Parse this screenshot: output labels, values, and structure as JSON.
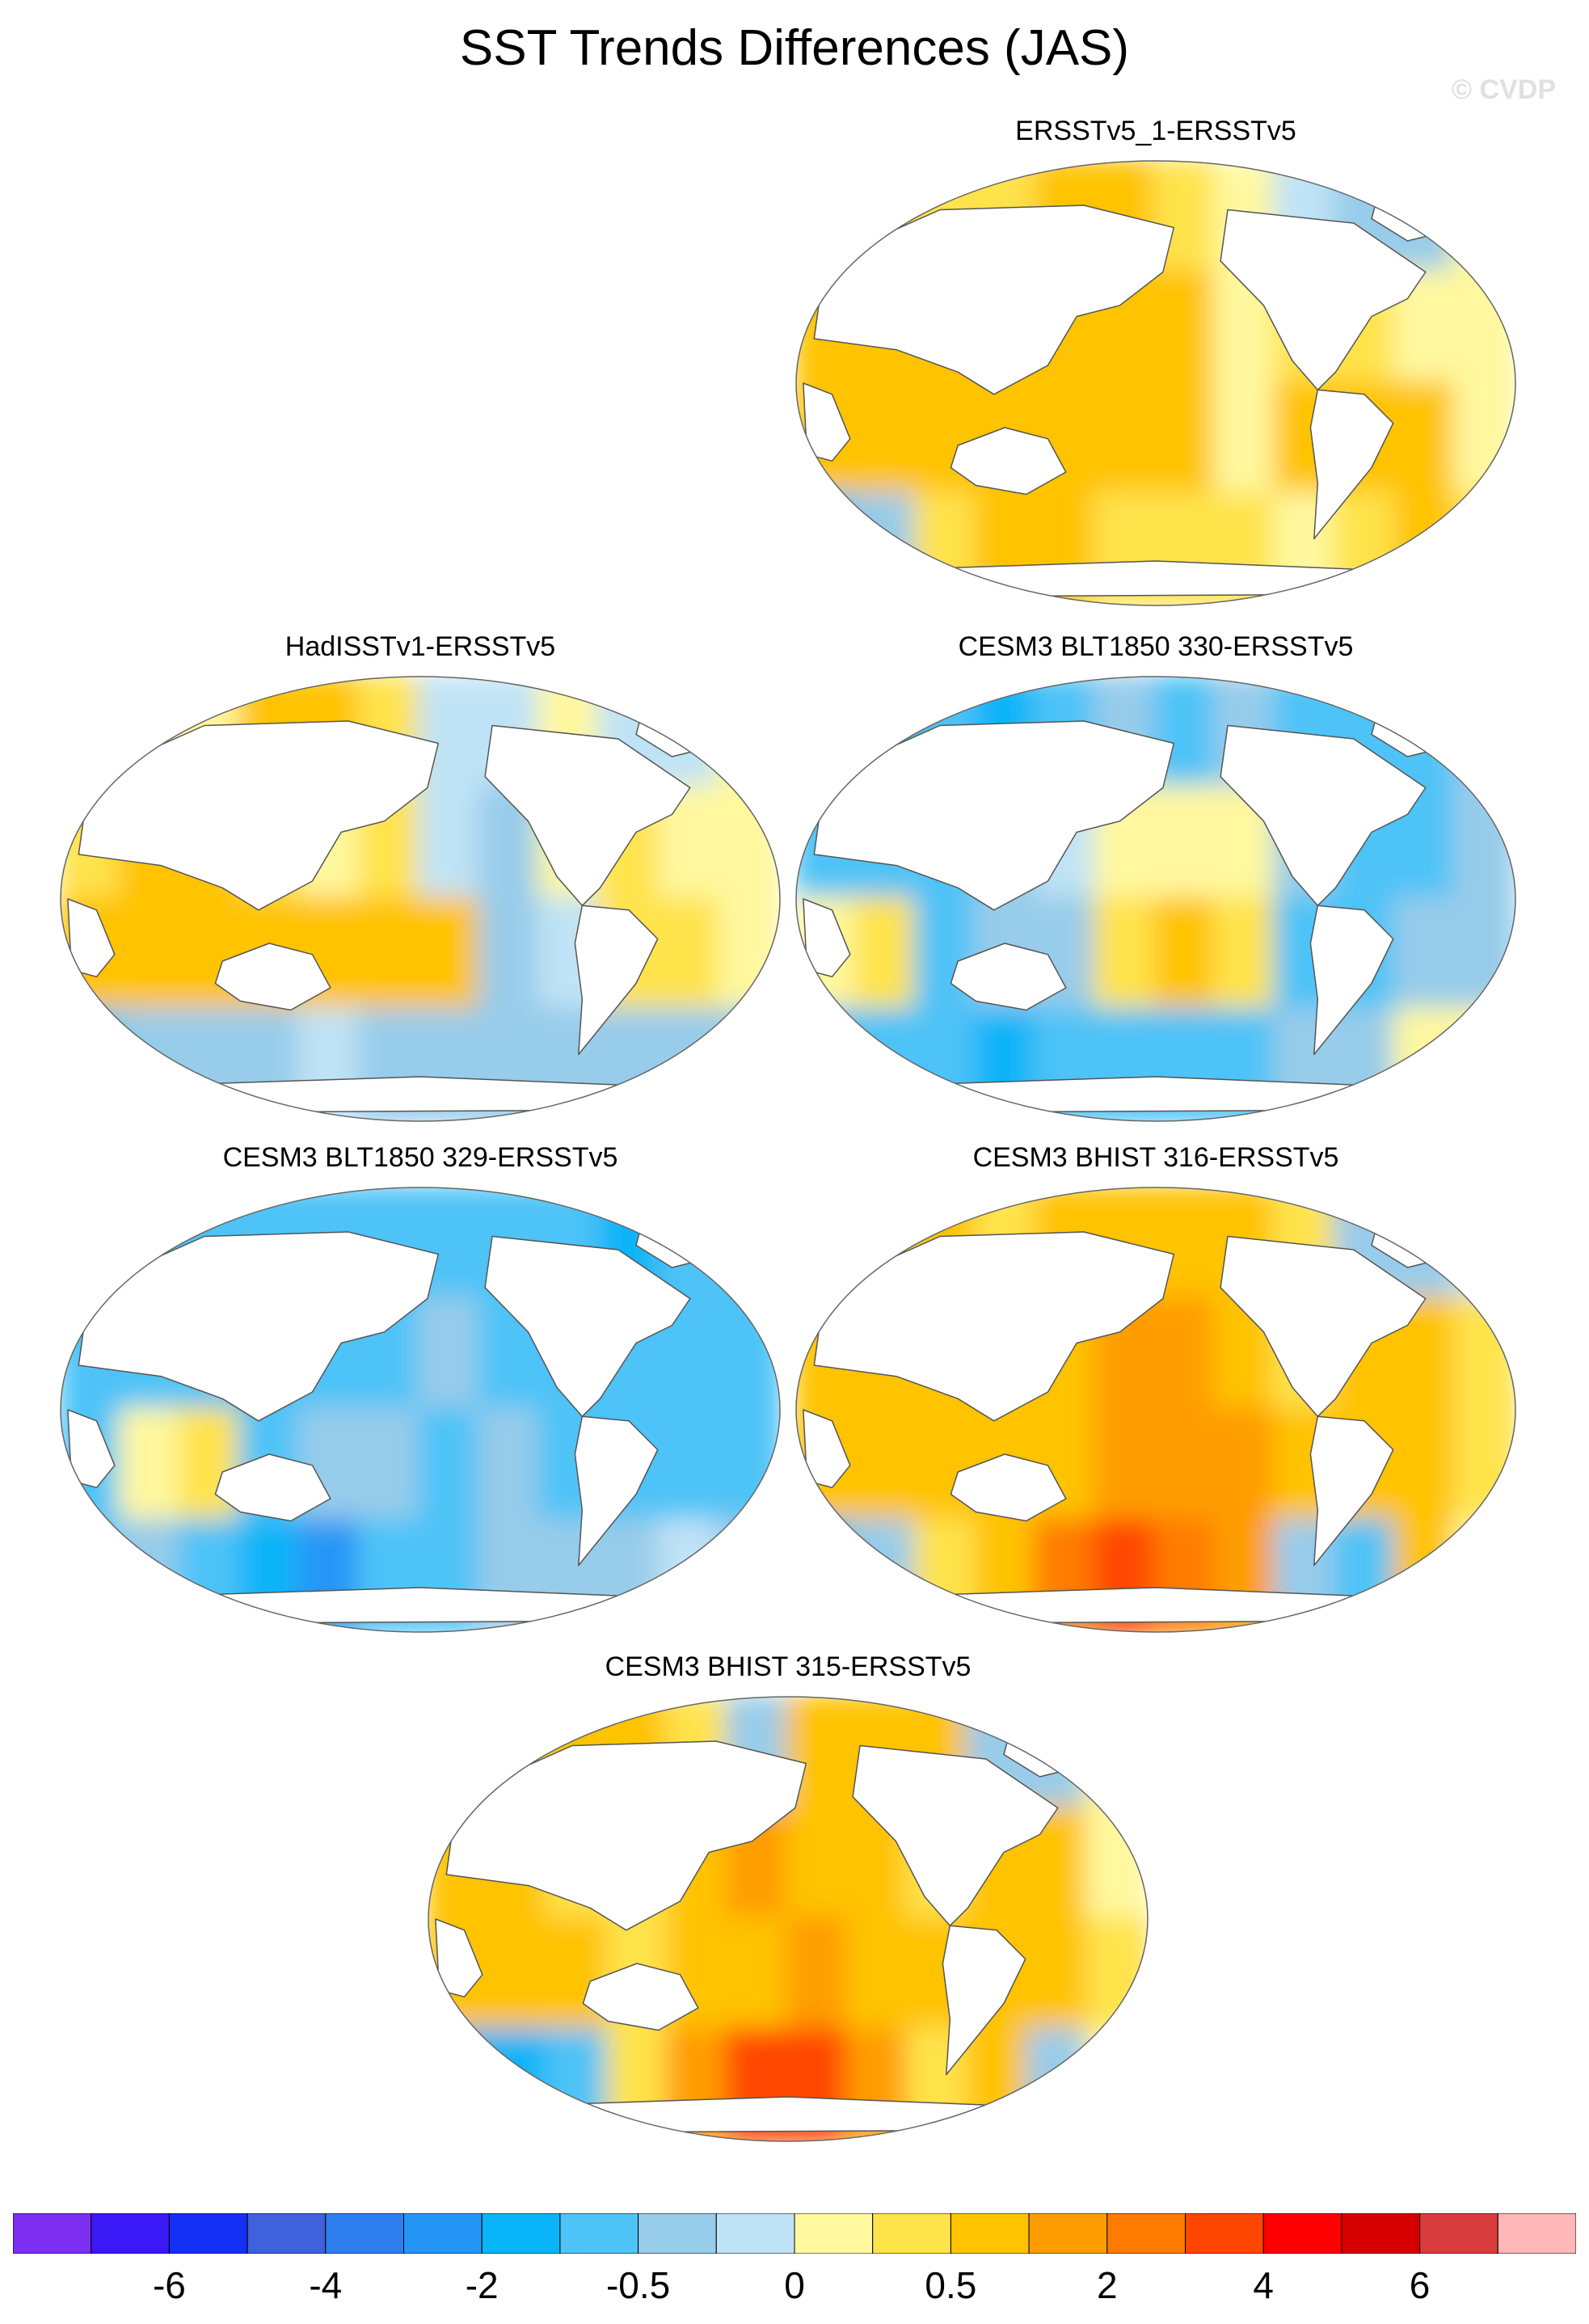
{
  "title": "SST Trends Differences (JAS)",
  "watermark": "© CVDP",
  "panels": [
    {
      "title": "ERSSTv5_1-ERSSTv5",
      "fields": [
        [
          0.3,
          0.3,
          0.4,
          0.4,
          0.5,
          0.7,
          0.4,
          0.1,
          -0.1,
          -0.4,
          -0.3,
          0.1
        ],
        [
          0.5,
          0.7,
          0.8,
          0.5,
          0.7,
          0.8,
          0.5,
          0.1,
          0.3,
          0.3,
          0.2,
          0.0
        ],
        [
          0.6,
          0.9,
          0.9,
          0.6,
          0.5,
          0.7,
          0.6,
          0.2,
          0.6,
          0.5,
          0.5,
          0.1
        ],
        [
          -0.6,
          -0.4,
          0.3,
          0.5,
          0.5,
          0.3,
          0.4,
          0.3,
          0.2,
          0.3,
          0.5,
          0.4
        ]
      ]
    },
    {
      "title": "HadISSTv1-ERSSTv5",
      "fields": [
        [
          0.3,
          0.1,
          0.2,
          0.5,
          0.6,
          0.4,
          -0.2,
          -0.1,
          0.2,
          -0.2,
          -0.1,
          0.1
        ],
        [
          0.4,
          0.6,
          0.5,
          0.3,
          0.1,
          0.3,
          -0.1,
          -0.4,
          0.1,
          0.3,
          0.1,
          0.0
        ],
        [
          0.5,
          0.7,
          0.7,
          0.5,
          0.6,
          0.5,
          0.7,
          -0.4,
          -0.2,
          0.4,
          0.3,
          0.2
        ],
        [
          -0.6,
          -0.5,
          -0.4,
          -0.3,
          -0.2,
          -0.3,
          -0.4,
          -0.5,
          -0.4,
          -0.5,
          -0.4,
          -0.4
        ]
      ]
    },
    {
      "title": "CESM3 BLT1850 330-ERSSTv5",
      "fields": [
        [
          -0.4,
          -0.6,
          -1.0,
          -1.4,
          -0.8,
          -0.5,
          -0.6,
          -0.4,
          -0.9,
          -1.0,
          -0.8,
          -0.4
        ],
        [
          -0.6,
          -0.8,
          -0.7,
          -0.4,
          -0.2,
          0.1,
          0.2,
          0.0,
          -0.5,
          -0.6,
          -0.7,
          -0.4
        ],
        [
          0.1,
          0.4,
          -0.8,
          -0.5,
          -0.3,
          0.3,
          0.5,
          0.4,
          -0.6,
          -0.7,
          -0.4,
          -0.5
        ],
        [
          -0.6,
          -0.7,
          -0.8,
          -1.2,
          -0.8,
          -0.6,
          -0.8,
          -0.6,
          -0.5,
          -0.4,
          0.1,
          0.0
        ]
      ]
    },
    {
      "title": "CESM3 BLT1850 329-ERSSTv5",
      "fields": [
        [
          -0.7,
          -0.9,
          -0.8,
          -0.9,
          -0.7,
          -0.8,
          -0.6,
          -0.7,
          -1.0,
          -1.2,
          -0.9,
          -0.6
        ],
        [
          -0.9,
          -1.0,
          -0.9,
          -0.7,
          -0.6,
          -0.6,
          -0.5,
          -0.6,
          -0.7,
          -0.9,
          -0.8,
          -0.7
        ],
        [
          -0.7,
          0.2,
          0.3,
          -0.7,
          -0.5,
          -0.4,
          -0.6,
          -0.5,
          -0.7,
          -0.8,
          -0.7,
          -0.6
        ],
        [
          -0.6,
          -0.5,
          -0.8,
          -1.8,
          -3.0,
          -1.0,
          -0.7,
          -0.5,
          -0.4,
          -0.3,
          -0.2,
          -0.3
        ]
      ]
    },
    {
      "title": "CESM3 BHIST 316-ERSSTv5",
      "fields": [
        [
          0.3,
          0.4,
          0.5,
          0.4,
          0.6,
          0.8,
          0.8,
          0.5,
          0.3,
          -0.4,
          -0.3,
          -0.1
        ],
        [
          0.6,
          0.8,
          0.7,
          0.6,
          0.8,
          1.0,
          1.1,
          0.9,
          0.4,
          0.7,
          0.6,
          0.3
        ],
        [
          0.5,
          0.7,
          0.6,
          0.6,
          0.8,
          1.2,
          1.3,
          1.1,
          0.7,
          0.8,
          0.6,
          0.4
        ],
        [
          -0.8,
          -0.5,
          0.3,
          0.8,
          2.5,
          3.5,
          2.5,
          1.0,
          -0.5,
          -0.6,
          0.5,
          0.1
        ]
      ]
    },
    {
      "title": "CESM3 BHIST 315-ERSSTv5",
      "fields": [
        [
          0.3,
          0.4,
          0.6,
          0.5,
          0.4,
          -0.3,
          0.7,
          0.6,
          0.5,
          -0.4,
          -0.5,
          0.2
        ],
        [
          0.6,
          0.7,
          0.4,
          0.3,
          0.9,
          1.0,
          0.8,
          0.7,
          0.3,
          0.7,
          0.5,
          0.2
        ],
        [
          0.7,
          0.9,
          0.5,
          0.4,
          0.6,
          0.9,
          1.1,
          0.8,
          0.5,
          0.7,
          0.5,
          0.3
        ],
        [
          -1.6,
          -1.2,
          -0.6,
          0.4,
          1.6,
          3.0,
          3.8,
          1.4,
          0.4,
          0.6,
          -0.4,
          0.1
        ]
      ]
    }
  ],
  "colorbar": {
    "colors": [
      "#7d2ff0",
      "#3b18f6",
      "#1530f5",
      "#3f61db",
      "#2f7ef0",
      "#2596f6",
      "#0ab4f8",
      "#4ec3f7",
      "#97ccea",
      "#bfe3f6",
      "#fff89f",
      "#ffe34b",
      "#ffc300",
      "#ff9d00",
      "#ff7b00",
      "#ff4600",
      "#ff0000",
      "#d70000",
      "#d93c3c",
      "#ffb6b6"
    ],
    "levels": [
      -8,
      -6,
      -5,
      -4,
      -3,
      -2,
      -1,
      -0.5,
      -0.25,
      0,
      0.25,
      0.5,
      1,
      2,
      3,
      4,
      5,
      6,
      8
    ],
    "tick_labels": [
      "-6",
      "-4",
      "-2",
      "-0.5",
      "0",
      "0.5",
      "2",
      "4",
      "6"
    ],
    "tick_level_index": [
      1,
      3,
      5,
      7,
      9,
      11,
      13,
      15,
      17
    ]
  }
}
